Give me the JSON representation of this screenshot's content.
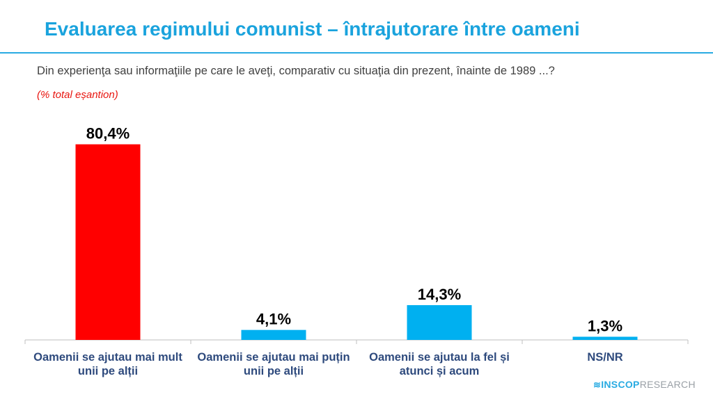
{
  "title": "Evaluarea regimului comunist – întrajutorare între oameni",
  "question": "Din experienţa sau informaţiile pe care le aveţi, comparativ cu situaţia din prezent, înainte de 1989 ...?",
  "note": "(% total eșantion)",
  "brand": {
    "mark": "≋",
    "name": "INSCOP",
    "suffix": "RESEARCH"
  },
  "colors": {
    "title": "#1aa3dd",
    "highlight": "#ff0000",
    "bar": "#00b0f0",
    "axis": "#bfbfbf",
    "labels": "#2e4a7d"
  },
  "chart_data": {
    "type": "bar",
    "categories": [
      "Oamenii se ajutau mai mult unii pe alții",
      "Oamenii se ajutau mai puțin unii pe alții",
      "Oamenii se ajutau la fel și atunci și acum",
      "NS/NR"
    ],
    "values": [
      80.4,
      4.1,
      14.3,
      1.3
    ],
    "value_labels": [
      "80,4%",
      "4,1%",
      "14,3%",
      "1,3%"
    ],
    "bar_colors": [
      "#ff0000",
      "#00b0f0",
      "#00b0f0",
      "#00b0f0"
    ],
    "ylim": [
      0,
      100
    ],
    "grid": false,
    "legend": "none"
  }
}
